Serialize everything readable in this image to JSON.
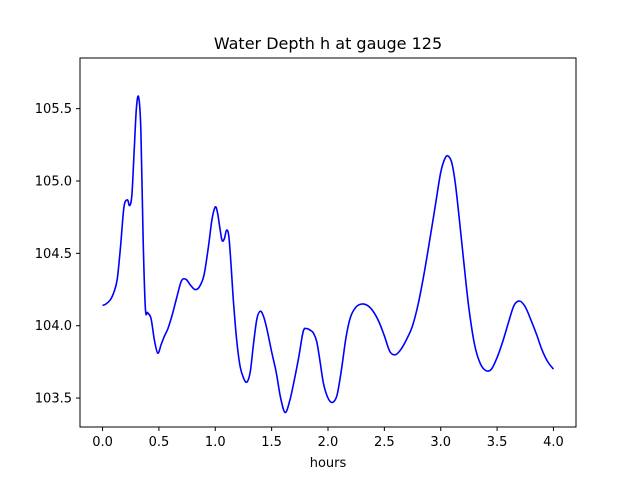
{
  "chart_data": {
    "type": "line",
    "title": "Water Depth h at gauge 125",
    "xlabel": "hours",
    "ylabel": "",
    "xlim": [
      -0.2,
      4.2
    ],
    "ylim": [
      103.3,
      105.85
    ],
    "xticks": [
      0.0,
      0.5,
      1.0,
      1.5,
      2.0,
      2.5,
      3.0,
      3.5,
      4.0
    ],
    "xtick_labels": [
      "0.0",
      "0.5",
      "1.0",
      "1.5",
      "2.0",
      "2.5",
      "3.0",
      "3.5",
      "4.0"
    ],
    "yticks": [
      103.5,
      104.0,
      104.5,
      105.0,
      105.5
    ],
    "ytick_labels": [
      "103.5",
      "104.0",
      "104.5",
      "105.0",
      "105.5"
    ],
    "grid": false,
    "series": [
      {
        "color": "#0000ff",
        "x": [
          0.0,
          0.03,
          0.07,
          0.1,
          0.13,
          0.16,
          0.19,
          0.22,
          0.24,
          0.26,
          0.28,
          0.3,
          0.32,
          0.34,
          0.36,
          0.38,
          0.4,
          0.43,
          0.46,
          0.49,
          0.52,
          0.55,
          0.58,
          0.62,
          0.66,
          0.7,
          0.74,
          0.78,
          0.82,
          0.86,
          0.9,
          0.94,
          0.97,
          1.0,
          1.02,
          1.04,
          1.06,
          1.08,
          1.1,
          1.12,
          1.14,
          1.16,
          1.19,
          1.22,
          1.25,
          1.28,
          1.31,
          1.34,
          1.37,
          1.4,
          1.43,
          1.46,
          1.5,
          1.54,
          1.58,
          1.62,
          1.66,
          1.7,
          1.74,
          1.78,
          1.81,
          1.84,
          1.87,
          1.9,
          1.93,
          1.96,
          2.0,
          2.04,
          2.08,
          2.12,
          2.16,
          2.2,
          2.25,
          2.3,
          2.35,
          2.4,
          2.45,
          2.5,
          2.55,
          2.6,
          2.65,
          2.7,
          2.75,
          2.8,
          2.85,
          2.9,
          2.95,
          3.0,
          3.04,
          3.07,
          3.1,
          3.13,
          3.17,
          3.21,
          3.25,
          3.3,
          3.35,
          3.4,
          3.45,
          3.5,
          3.55,
          3.6,
          3.65,
          3.7,
          3.75,
          3.8,
          3.85,
          3.9,
          3.95,
          4.0
        ],
        "y": [
          104.14,
          104.15,
          104.18,
          104.23,
          104.32,
          104.55,
          104.82,
          104.87,
          104.83,
          104.9,
          105.2,
          105.5,
          105.58,
          105.35,
          104.6,
          104.12,
          104.09,
          104.05,
          103.9,
          103.81,
          103.87,
          103.93,
          103.98,
          104.08,
          104.2,
          104.31,
          104.32,
          104.28,
          104.25,
          104.27,
          104.35,
          104.55,
          104.73,
          104.82,
          104.78,
          104.68,
          104.59,
          104.6,
          104.66,
          104.62,
          104.42,
          104.18,
          103.9,
          103.72,
          103.64,
          103.61,
          103.68,
          103.88,
          104.05,
          104.1,
          104.06,
          103.97,
          103.82,
          103.68,
          103.5,
          103.4,
          103.48,
          103.62,
          103.78,
          103.96,
          103.98,
          103.97,
          103.95,
          103.89,
          103.75,
          103.6,
          103.5,
          103.47,
          103.52,
          103.7,
          103.92,
          104.06,
          104.13,
          104.15,
          104.14,
          104.1,
          104.03,
          103.93,
          103.82,
          103.8,
          103.84,
          103.91,
          104.0,
          104.15,
          104.35,
          104.58,
          104.82,
          105.06,
          105.16,
          105.17,
          105.12,
          104.98,
          104.7,
          104.4,
          104.12,
          103.87,
          103.74,
          103.69,
          103.7,
          103.78,
          103.89,
          104.02,
          104.14,
          104.17,
          104.13,
          104.04,
          103.94,
          103.83,
          103.75,
          103.7
        ]
      }
    ]
  }
}
